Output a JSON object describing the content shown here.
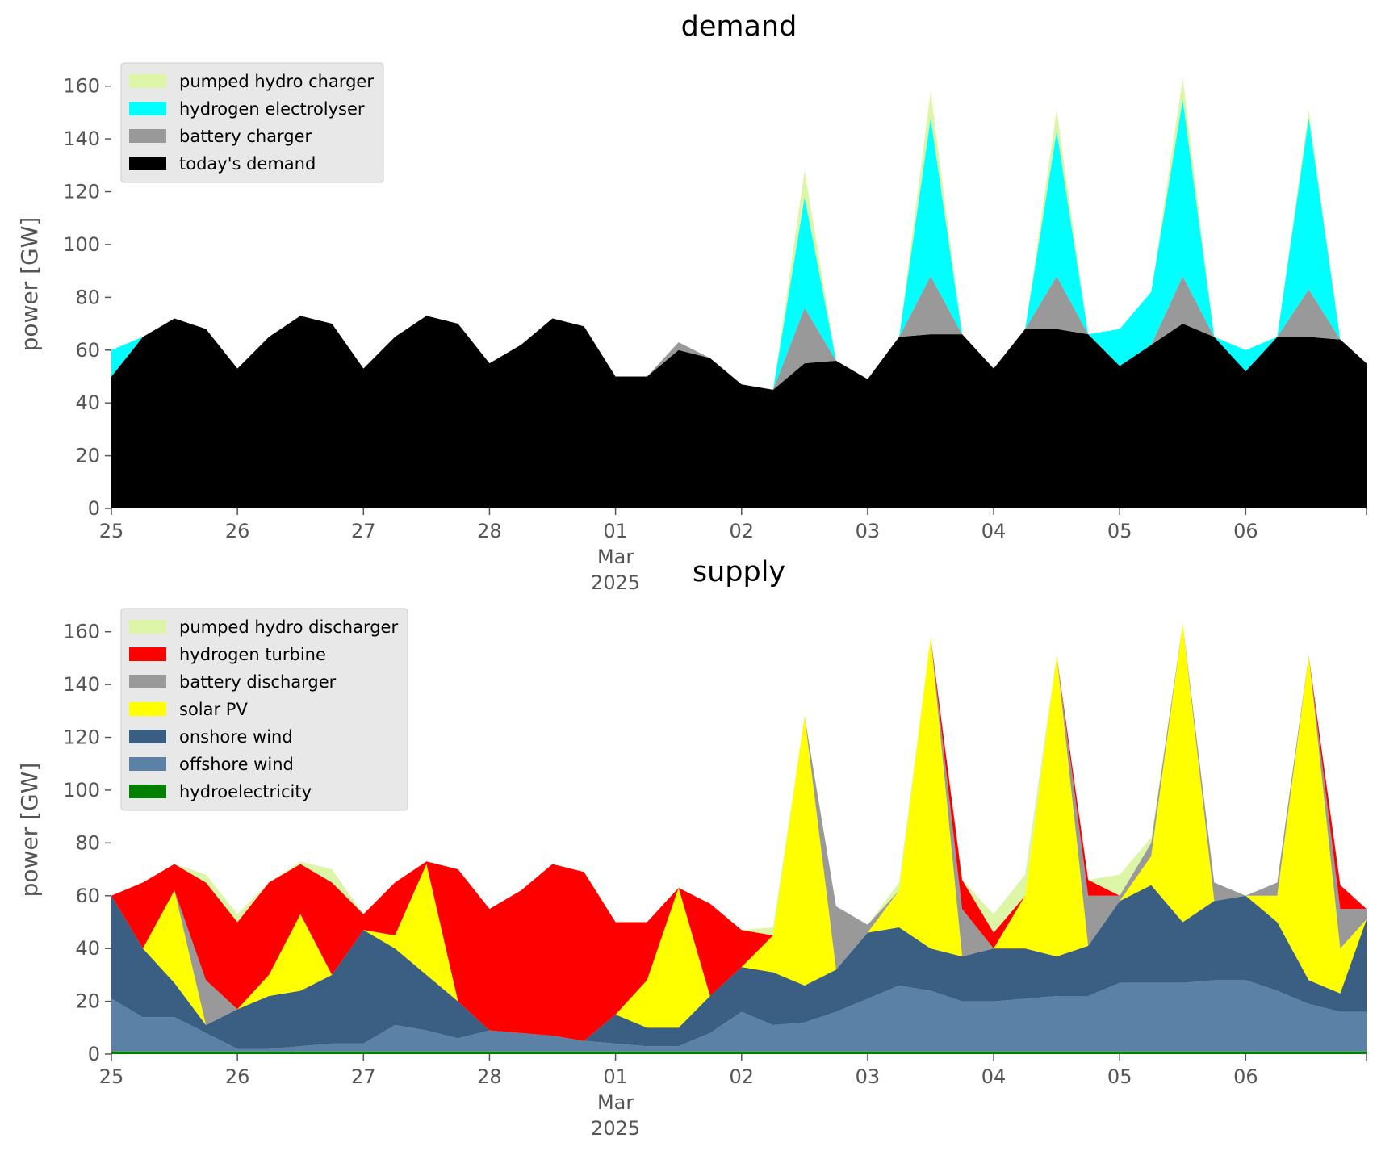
{
  "chart_data": [
    {
      "type": "area",
      "title": "demand",
      "ylabel": "power [GW]",
      "legend": "upper left",
      "x": [
        "2025-02-25T00:00",
        "2025-02-25T06:00",
        "2025-02-25T12:00",
        "2025-02-25T18:00",
        "2025-02-26T00:00",
        "2025-02-26T06:00",
        "2025-02-26T12:00",
        "2025-02-26T18:00",
        "2025-02-27T00:00",
        "2025-02-27T06:00",
        "2025-02-27T12:00",
        "2025-02-27T18:00",
        "2025-02-28T00:00",
        "2025-02-28T06:00",
        "2025-02-28T12:00",
        "2025-02-28T18:00",
        "2025-03-01T00:00",
        "2025-03-01T06:00",
        "2025-03-01T12:00",
        "2025-03-01T18:00",
        "2025-03-02T00:00",
        "2025-03-02T06:00",
        "2025-03-02T12:00",
        "2025-03-02T18:00",
        "2025-03-03T00:00",
        "2025-03-03T06:00",
        "2025-03-03T12:00",
        "2025-03-03T18:00",
        "2025-03-04T00:00",
        "2025-03-04T06:00",
        "2025-03-04T12:00",
        "2025-03-04T18:00",
        "2025-03-05T00:00",
        "2025-03-05T06:00",
        "2025-03-05T12:00",
        "2025-03-05T18:00",
        "2025-03-06T00:00",
        "2025-03-06T06:00",
        "2025-03-06T12:00",
        "2025-03-06T18:00",
        "2025-03-06T23:00"
      ],
      "xlim": [
        "2025-02-25T00:00",
        "2025-03-06T23:00"
      ],
      "xticks": [
        {
          "value": "2025-02-25T00:00",
          "label": "25"
        },
        {
          "value": "2025-02-26T00:00",
          "label": "26"
        },
        {
          "value": "2025-02-27T00:00",
          "label": "27"
        },
        {
          "value": "2025-02-28T00:00",
          "label": "28"
        },
        {
          "value": "2025-03-01T00:00",
          "label": "01\nMar\n2025"
        },
        {
          "value": "2025-03-02T00:00",
          "label": "02"
        },
        {
          "value": "2025-03-03T00:00",
          "label": "03"
        },
        {
          "value": "2025-03-04T00:00",
          "label": "04"
        },
        {
          "value": "2025-03-05T00:00",
          "label": "05"
        },
        {
          "value": "2025-03-06T00:00",
          "label": "06"
        }
      ],
      "ylim": [
        0,
        170
      ],
      "yticks": [
        0,
        20,
        40,
        60,
        80,
        100,
        120,
        140,
        160
      ],
      "series": [
        {
          "name": "today's demand",
          "color": "#000000",
          "values": [
            50,
            65,
            72,
            68,
            53,
            65,
            73,
            70,
            53,
            65,
            73,
            70,
            55,
            62,
            72,
            69,
            50,
            50,
            60,
            57,
            47,
            45,
            55,
            56,
            49,
            65,
            66,
            66,
            53,
            68,
            68,
            66,
            54,
            62,
            70,
            65,
            52,
            65,
            65,
            64,
            55
          ]
        },
        {
          "name": "battery charger",
          "color": "#999999",
          "values": [
            0,
            0,
            0,
            0,
            0,
            0,
            0,
            0,
            0,
            0,
            0,
            0,
            0,
            0,
            0,
            0,
            0,
            0,
            3,
            0,
            0,
            0,
            21,
            0,
            0,
            0,
            22,
            0,
            0,
            0,
            20,
            0,
            0,
            0,
            18,
            0,
            0,
            0,
            18,
            0,
            0
          ]
        },
        {
          "name": "hydrogen electrolyser",
          "color": "#00ffff",
          "values": [
            10,
            0,
            0,
            0,
            0,
            0,
            0,
            0,
            0,
            0,
            0,
            0,
            0,
            0,
            0,
            0,
            0,
            0,
            0,
            0,
            0,
            0,
            42,
            0,
            0,
            0,
            60,
            0,
            0,
            0,
            55,
            0,
            14,
            20,
            67,
            0,
            8,
            0,
            65,
            0,
            0
          ]
        },
        {
          "name": "pumped hydro charger",
          "color": "#dcf5a6",
          "values": [
            0,
            0,
            0,
            0,
            0,
            0,
            0,
            0,
            0,
            0,
            0,
            0,
            0,
            0,
            0,
            0,
            0,
            0,
            0,
            0,
            0,
            0,
            10,
            0,
            0,
            0,
            10,
            0,
            0,
            0,
            8,
            0,
            0,
            0,
            8,
            0,
            0,
            0,
            3,
            0,
            0
          ]
        }
      ]
    },
    {
      "type": "area",
      "title": "supply",
      "ylabel": "power [GW]",
      "legend": "upper left",
      "x": [
        "2025-02-25T00:00",
        "2025-02-25T06:00",
        "2025-02-25T12:00",
        "2025-02-25T18:00",
        "2025-02-26T00:00",
        "2025-02-26T06:00",
        "2025-02-26T12:00",
        "2025-02-26T18:00",
        "2025-02-27T00:00",
        "2025-02-27T06:00",
        "2025-02-27T12:00",
        "2025-02-27T18:00",
        "2025-02-28T00:00",
        "2025-02-28T06:00",
        "2025-02-28T12:00",
        "2025-02-28T18:00",
        "2025-03-01T00:00",
        "2025-03-01T06:00",
        "2025-03-01T12:00",
        "2025-03-01T18:00",
        "2025-03-02T00:00",
        "2025-03-02T06:00",
        "2025-03-02T12:00",
        "2025-03-02T18:00",
        "2025-03-03T00:00",
        "2025-03-03T06:00",
        "2025-03-03T12:00",
        "2025-03-03T18:00",
        "2025-03-04T00:00",
        "2025-03-04T06:00",
        "2025-03-04T12:00",
        "2025-03-04T18:00",
        "2025-03-05T00:00",
        "2025-03-05T06:00",
        "2025-03-05T12:00",
        "2025-03-05T18:00",
        "2025-03-06T00:00",
        "2025-03-06T06:00",
        "2025-03-06T12:00",
        "2025-03-06T18:00",
        "2025-03-06T23:00"
      ],
      "xlim": [
        "2025-02-25T00:00",
        "2025-03-06T23:00"
      ],
      "xticks": [
        {
          "value": "2025-02-25T00:00",
          "label": "25"
        },
        {
          "value": "2025-02-26T00:00",
          "label": "26"
        },
        {
          "value": "2025-02-27T00:00",
          "label": "27"
        },
        {
          "value": "2025-02-28T00:00",
          "label": "28"
        },
        {
          "value": "2025-03-01T00:00",
          "label": "01\nMar\n2025"
        },
        {
          "value": "2025-03-02T00:00",
          "label": "02"
        },
        {
          "value": "2025-03-03T00:00",
          "label": "03"
        },
        {
          "value": "2025-03-04T00:00",
          "label": "04"
        },
        {
          "value": "2025-03-05T00:00",
          "label": "05"
        },
        {
          "value": "2025-03-06T00:00",
          "label": "06"
        }
      ],
      "ylim": [
        0,
        170
      ],
      "yticks": [
        0,
        20,
        40,
        60,
        80,
        100,
        120,
        140,
        160
      ],
      "series": [
        {
          "name": "hydroelectricity",
          "color": "#008000",
          "values": [
            1,
            1,
            1,
            1,
            1,
            1,
            1,
            1,
            1,
            1,
            1,
            1,
            1,
            1,
            1,
            1,
            1,
            1,
            1,
            1,
            1,
            1,
            1,
            1,
            1,
            1,
            1,
            1,
            1,
            1,
            1,
            1,
            1,
            1,
            1,
            1,
            1,
            1,
            1,
            1,
            1
          ]
        },
        {
          "name": "offshore wind",
          "color": "#5b82a6",
          "values": [
            20,
            13,
            13,
            7,
            1,
            1,
            2,
            3,
            3,
            10,
            8,
            5,
            8,
            7,
            6,
            4,
            3,
            2,
            2,
            7,
            15,
            10,
            11,
            15,
            20,
            25,
            23,
            19,
            19,
            20,
            21,
            21,
            26,
            26,
            26,
            27,
            27,
            23,
            18,
            15,
            15
          ]
        },
        {
          "name": "onshore wind",
          "color": "#3a5f82",
          "values": [
            39,
            26,
            13,
            3,
            15,
            20,
            21,
            26,
            43,
            29,
            21,
            14,
            0,
            0,
            0,
            0,
            11,
            7,
            7,
            14,
            17,
            20,
            14,
            16,
            25,
            22,
            16,
            17,
            20,
            19,
            15,
            19,
            31,
            37,
            23,
            30,
            32,
            26,
            9,
            7,
            35
          ]
        },
        {
          "name": "solar PV",
          "color": "#ffff00",
          "values": [
            0,
            0,
            35,
            0,
            0,
            8,
            29,
            0,
            0,
            5,
            42,
            0,
            0,
            0,
            0,
            0,
            0,
            18,
            53,
            0,
            0,
            14,
            102,
            0,
            0,
            14,
            118,
            0,
            0,
            20,
            114,
            0,
            0,
            11,
            113,
            0,
            0,
            10,
            123,
            17,
            0
          ]
        },
        {
          "name": "battery discharger",
          "color": "#999999",
          "values": [
            0,
            0,
            0,
            17,
            0,
            0,
            0,
            0,
            0,
            0,
            0,
            0,
            0,
            0,
            0,
            0,
            0,
            0,
            0,
            0,
            0,
            0,
            0,
            24,
            3,
            0,
            0,
            18,
            0,
            0,
            0,
            19,
            2,
            5,
            0,
            7,
            0,
            5,
            0,
            15,
            4
          ]
        },
        {
          "name": "hydrogen turbine",
          "color": "#ff0000",
          "values": [
            0,
            25,
            10,
            37,
            33,
            35,
            19,
            35,
            6,
            20,
            1,
            50,
            46,
            54,
            65,
            64,
            35,
            22,
            0,
            35,
            14,
            0,
            0,
            0,
            0,
            0,
            0,
            11,
            6,
            0,
            0,
            6,
            0,
            0,
            0,
            0,
            0,
            0,
            0,
            9,
            0
          ]
        },
        {
          "name": "pumped hydro discharger",
          "color": "#dcf5a6",
          "values": [
            0,
            0,
            0,
            3,
            3,
            0,
            1,
            5,
            0,
            0,
            0,
            0,
            0,
            0,
            0,
            0,
            0,
            0,
            0,
            0,
            0,
            3,
            0,
            0,
            0,
            3,
            0,
            0,
            7,
            8,
            0,
            0,
            8,
            2,
            0,
            0,
            0,
            0,
            0,
            0,
            0
          ]
        }
      ]
    }
  ]
}
